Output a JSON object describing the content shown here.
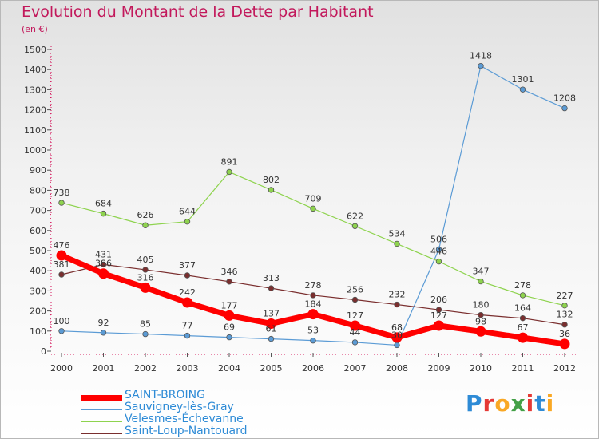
{
  "title": "Evolution du Montant de la Dette par Habitant",
  "subtitle": "(en €)",
  "logo": {
    "text": "Proxiti",
    "colors": [
      "#2e8bd6",
      "#e53935",
      "#f9a825",
      "#43a047",
      "#e53935",
      "#2e8bd6",
      "#f9a825"
    ]
  },
  "chart_data": {
    "type": "line",
    "x": [
      "2000",
      "2001",
      "2002",
      "2003",
      "2004",
      "2005",
      "2006",
      "2007",
      "2008",
      "2009",
      "2010",
      "2011",
      "2012"
    ],
    "ylim": [
      0,
      1500
    ],
    "yticks": [
      0,
      100,
      200,
      300,
      400,
      500,
      600,
      700,
      800,
      900,
      1000,
      1100,
      1200,
      1300,
      1400,
      1500
    ],
    "grid": false,
    "legend_position": "bottom-left",
    "series": [
      {
        "name": "Sauvigney-lès-Gray",
        "color": "#5b9bd5",
        "values": [
          100,
          92,
          85,
          77,
          69,
          61,
          53,
          44,
          30,
          506,
          1418,
          1301,
          1208
        ]
      },
      {
        "name": "Velesmes-Échevanne",
        "color": "#8ed34e",
        "values": [
          738,
          684,
          626,
          644,
          891,
          802,
          709,
          622,
          534,
          446,
          347,
          278,
          227
        ]
      },
      {
        "name": "Saint-Loup-Nantouard",
        "color": "#7a2e2e",
        "values": [
          381,
          431,
          405,
          377,
          346,
          313,
          278,
          256,
          232,
          206,
          180,
          164,
          132
        ]
      },
      {
        "name": "SAINT-BROING",
        "color": "#ff0000",
        "values": [
          476,
          386,
          316,
          242,
          177,
          137,
          184,
          127,
          68,
          127,
          98,
          67,
          36
        ]
      }
    ]
  }
}
